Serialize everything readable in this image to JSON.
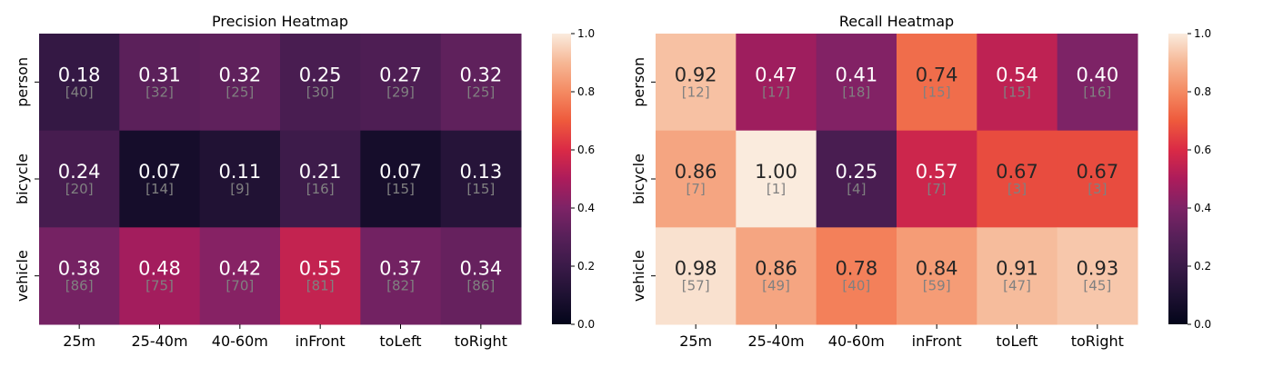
{
  "chart_data": [
    {
      "type": "heatmap",
      "title": "Precision Heatmap",
      "rows": [
        "person",
        "bicycle",
        "vehicle"
      ],
      "columns": [
        "25m",
        "25-40m",
        "40-60m",
        "inFront",
        "toLeft",
        "toRight"
      ],
      "values": [
        [
          0.18,
          0.31,
          0.32,
          0.25,
          0.27,
          0.32
        ],
        [
          0.24,
          0.07,
          0.11,
          0.21,
          0.07,
          0.13
        ],
        [
          0.38,
          0.48,
          0.42,
          0.55,
          0.37,
          0.34
        ]
      ],
      "cell_labels": [
        [
          "0.18",
          "0.31",
          "0.32",
          "0.25",
          "0.27",
          "0.32"
        ],
        [
          "0.24",
          "0.07",
          "0.11",
          "0.21",
          "0.07",
          "0.13"
        ],
        [
          "0.38",
          "0.48",
          "0.42",
          "0.55",
          "0.37",
          "0.34"
        ]
      ],
      "counts": [
        [
          "[40]",
          "[32]",
          "[25]",
          "[30]",
          "[29]",
          "[25]"
        ],
        [
          "[20]",
          "[14]",
          "[9]",
          "[16]",
          "[15]",
          "[15]"
        ],
        [
          "[86]",
          "[75]",
          "[70]",
          "[81]",
          "[82]",
          "[86]"
        ]
      ],
      "colorbar": {
        "range": [
          0,
          1
        ],
        "ticks": [
          "0.0",
          "0.2",
          "0.4",
          "0.6",
          "0.8",
          "1.0"
        ]
      }
    },
    {
      "type": "heatmap",
      "title": "Recall Heatmap",
      "rows": [
        "person",
        "bicycle",
        "vehicle"
      ],
      "columns": [
        "25m",
        "25-40m",
        "40-60m",
        "inFront",
        "toLeft",
        "toRight"
      ],
      "values": [
        [
          0.92,
          0.47,
          0.41,
          0.74,
          0.54,
          0.4
        ],
        [
          0.86,
          1.0,
          0.25,
          0.57,
          0.67,
          0.67
        ],
        [
          0.98,
          0.86,
          0.78,
          0.84,
          0.91,
          0.93
        ]
      ],
      "cell_labels": [
        [
          "0.92",
          "0.47",
          "0.41",
          "0.74",
          "0.54",
          "0.40"
        ],
        [
          "0.86",
          "1.00",
          "0.25",
          "0.57",
          "0.67",
          "0.67"
        ],
        [
          "0.98",
          "0.86",
          "0.78",
          "0.84",
          "0.91",
          "0.93"
        ]
      ],
      "counts": [
        [
          "[12]",
          "[17]",
          "[18]",
          "[15]",
          "[15]",
          "[16]"
        ],
        [
          "[7]",
          "[1]",
          "[4]",
          "[7]",
          "[3]",
          "[3]"
        ],
        [
          "[57]",
          "[49]",
          "[40]",
          "[59]",
          "[47]",
          "[45]"
        ]
      ],
      "colorbar": {
        "range": [
          0,
          1
        ],
        "ticks": [
          "0.0",
          "0.2",
          "0.4",
          "0.6",
          "0.8",
          "1.0"
        ]
      }
    }
  ],
  "colors": {
    "colormap": "rocket",
    "annotation_light": "#ffffff",
    "annotation_dark": "#262626",
    "count_text": "#808080"
  }
}
